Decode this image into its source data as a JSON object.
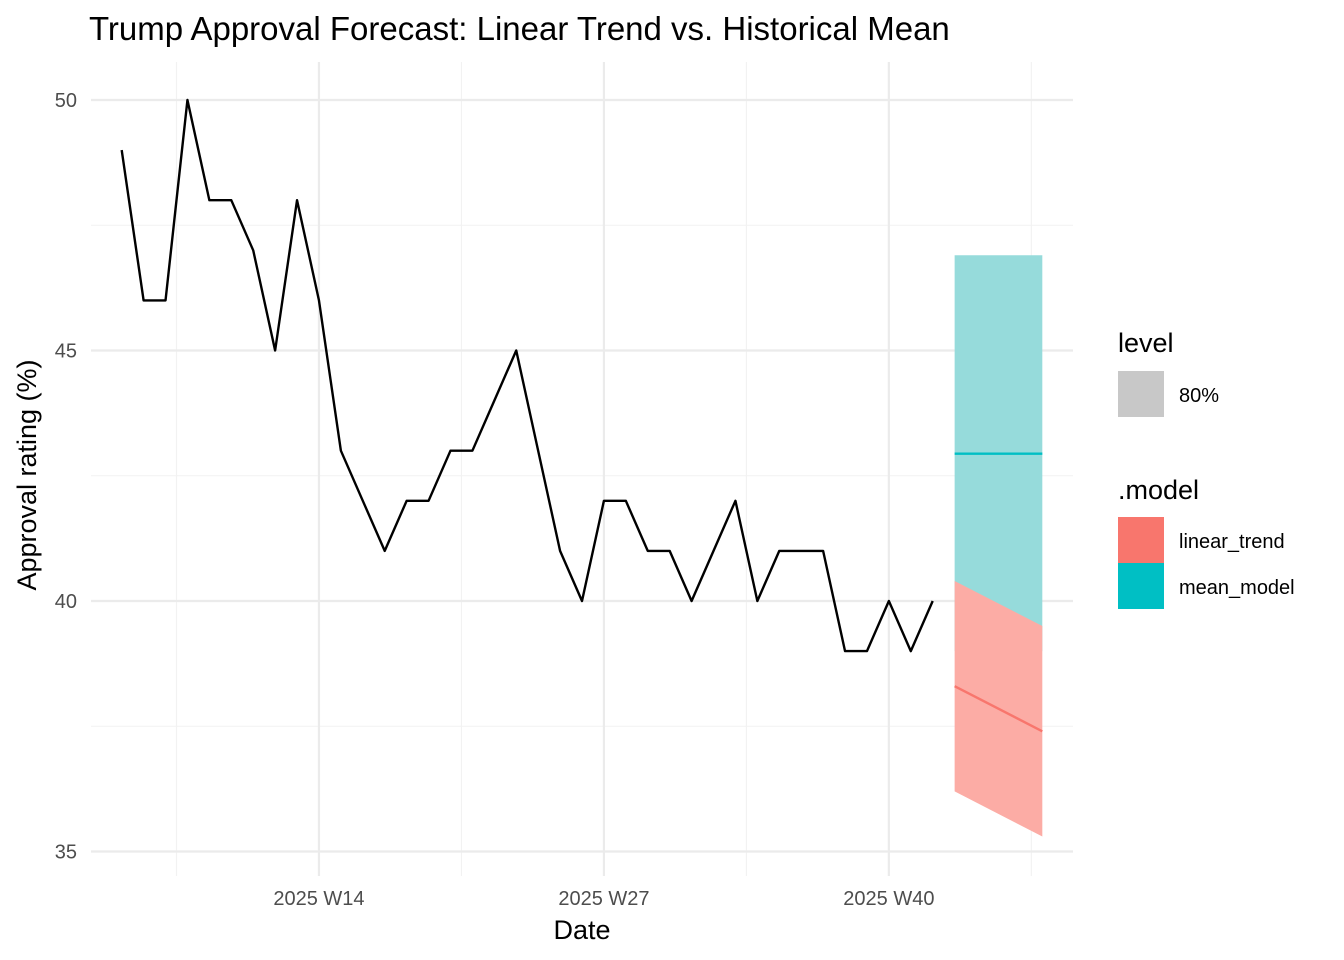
{
  "chart_data": {
    "type": "line",
    "title": "Trump Approval Forecast: Linear Trend vs. Historical Mean",
    "xlabel": "Date",
    "ylabel": "Approval rating (%)",
    "ylim": [
      35,
      50
    ],
    "y_ticks": [
      35,
      40,
      45,
      50
    ],
    "x_ticks": [
      {
        "week": 14,
        "label": "2025 W14"
      },
      {
        "week": 27,
        "label": "2025 W27"
      },
      {
        "week": 40,
        "label": "2025 W40"
      }
    ],
    "xlim_weeks": [
      3.6,
      48.4
    ],
    "grid": true,
    "legend_position": "right",
    "observed": {
      "color": "#000000",
      "weeks": [
        5,
        6,
        7,
        8,
        9,
        10,
        11,
        12,
        13,
        14,
        15,
        16,
        17,
        18,
        19,
        20,
        21,
        22,
        23,
        24,
        25,
        26,
        27,
        28,
        29,
        30,
        31,
        32,
        33,
        34,
        35,
        36,
        37,
        38,
        39,
        40,
        41,
        42
      ],
      "values": [
        49,
        46,
        46,
        50,
        48,
        48,
        47,
        45,
        48,
        46,
        43,
        42,
        41,
        42,
        42,
        43,
        43,
        44,
        45,
        43,
        41,
        40,
        42,
        42,
        41,
        41,
        40,
        41,
        42,
        40,
        41,
        41,
        41,
        39,
        39,
        40,
        39,
        40
      ]
    },
    "forecasts": [
      {
        "model": "linear_trend",
        "color": "#F8766D",
        "band_color": "#FCACA5",
        "weeks": [
          43,
          47
        ],
        "mean": [
          38.3,
          37.4
        ],
        "lower": [
          36.2,
          35.3
        ],
        "upper": [
          40.4,
          39.5
        ]
      },
      {
        "model": "mean_model",
        "color": "#00BFC4",
        "band_color": "#96DBDB",
        "weeks": [
          43,
          47
        ],
        "mean": [
          42.94,
          42.94
        ],
        "lower": [
          39.0,
          39.0
        ],
        "upper": [
          46.9,
          46.9
        ]
      }
    ],
    "legend": {
      "level": {
        "title": "level",
        "items": [
          {
            "label": "80%",
            "color": "#C8C8C8"
          }
        ]
      },
      "model": {
        "title": ".model",
        "items": [
          {
            "label": "linear_trend",
            "color": "#F8766D"
          },
          {
            "label": "mean_model",
            "color": "#00BFC4"
          }
        ]
      }
    }
  }
}
